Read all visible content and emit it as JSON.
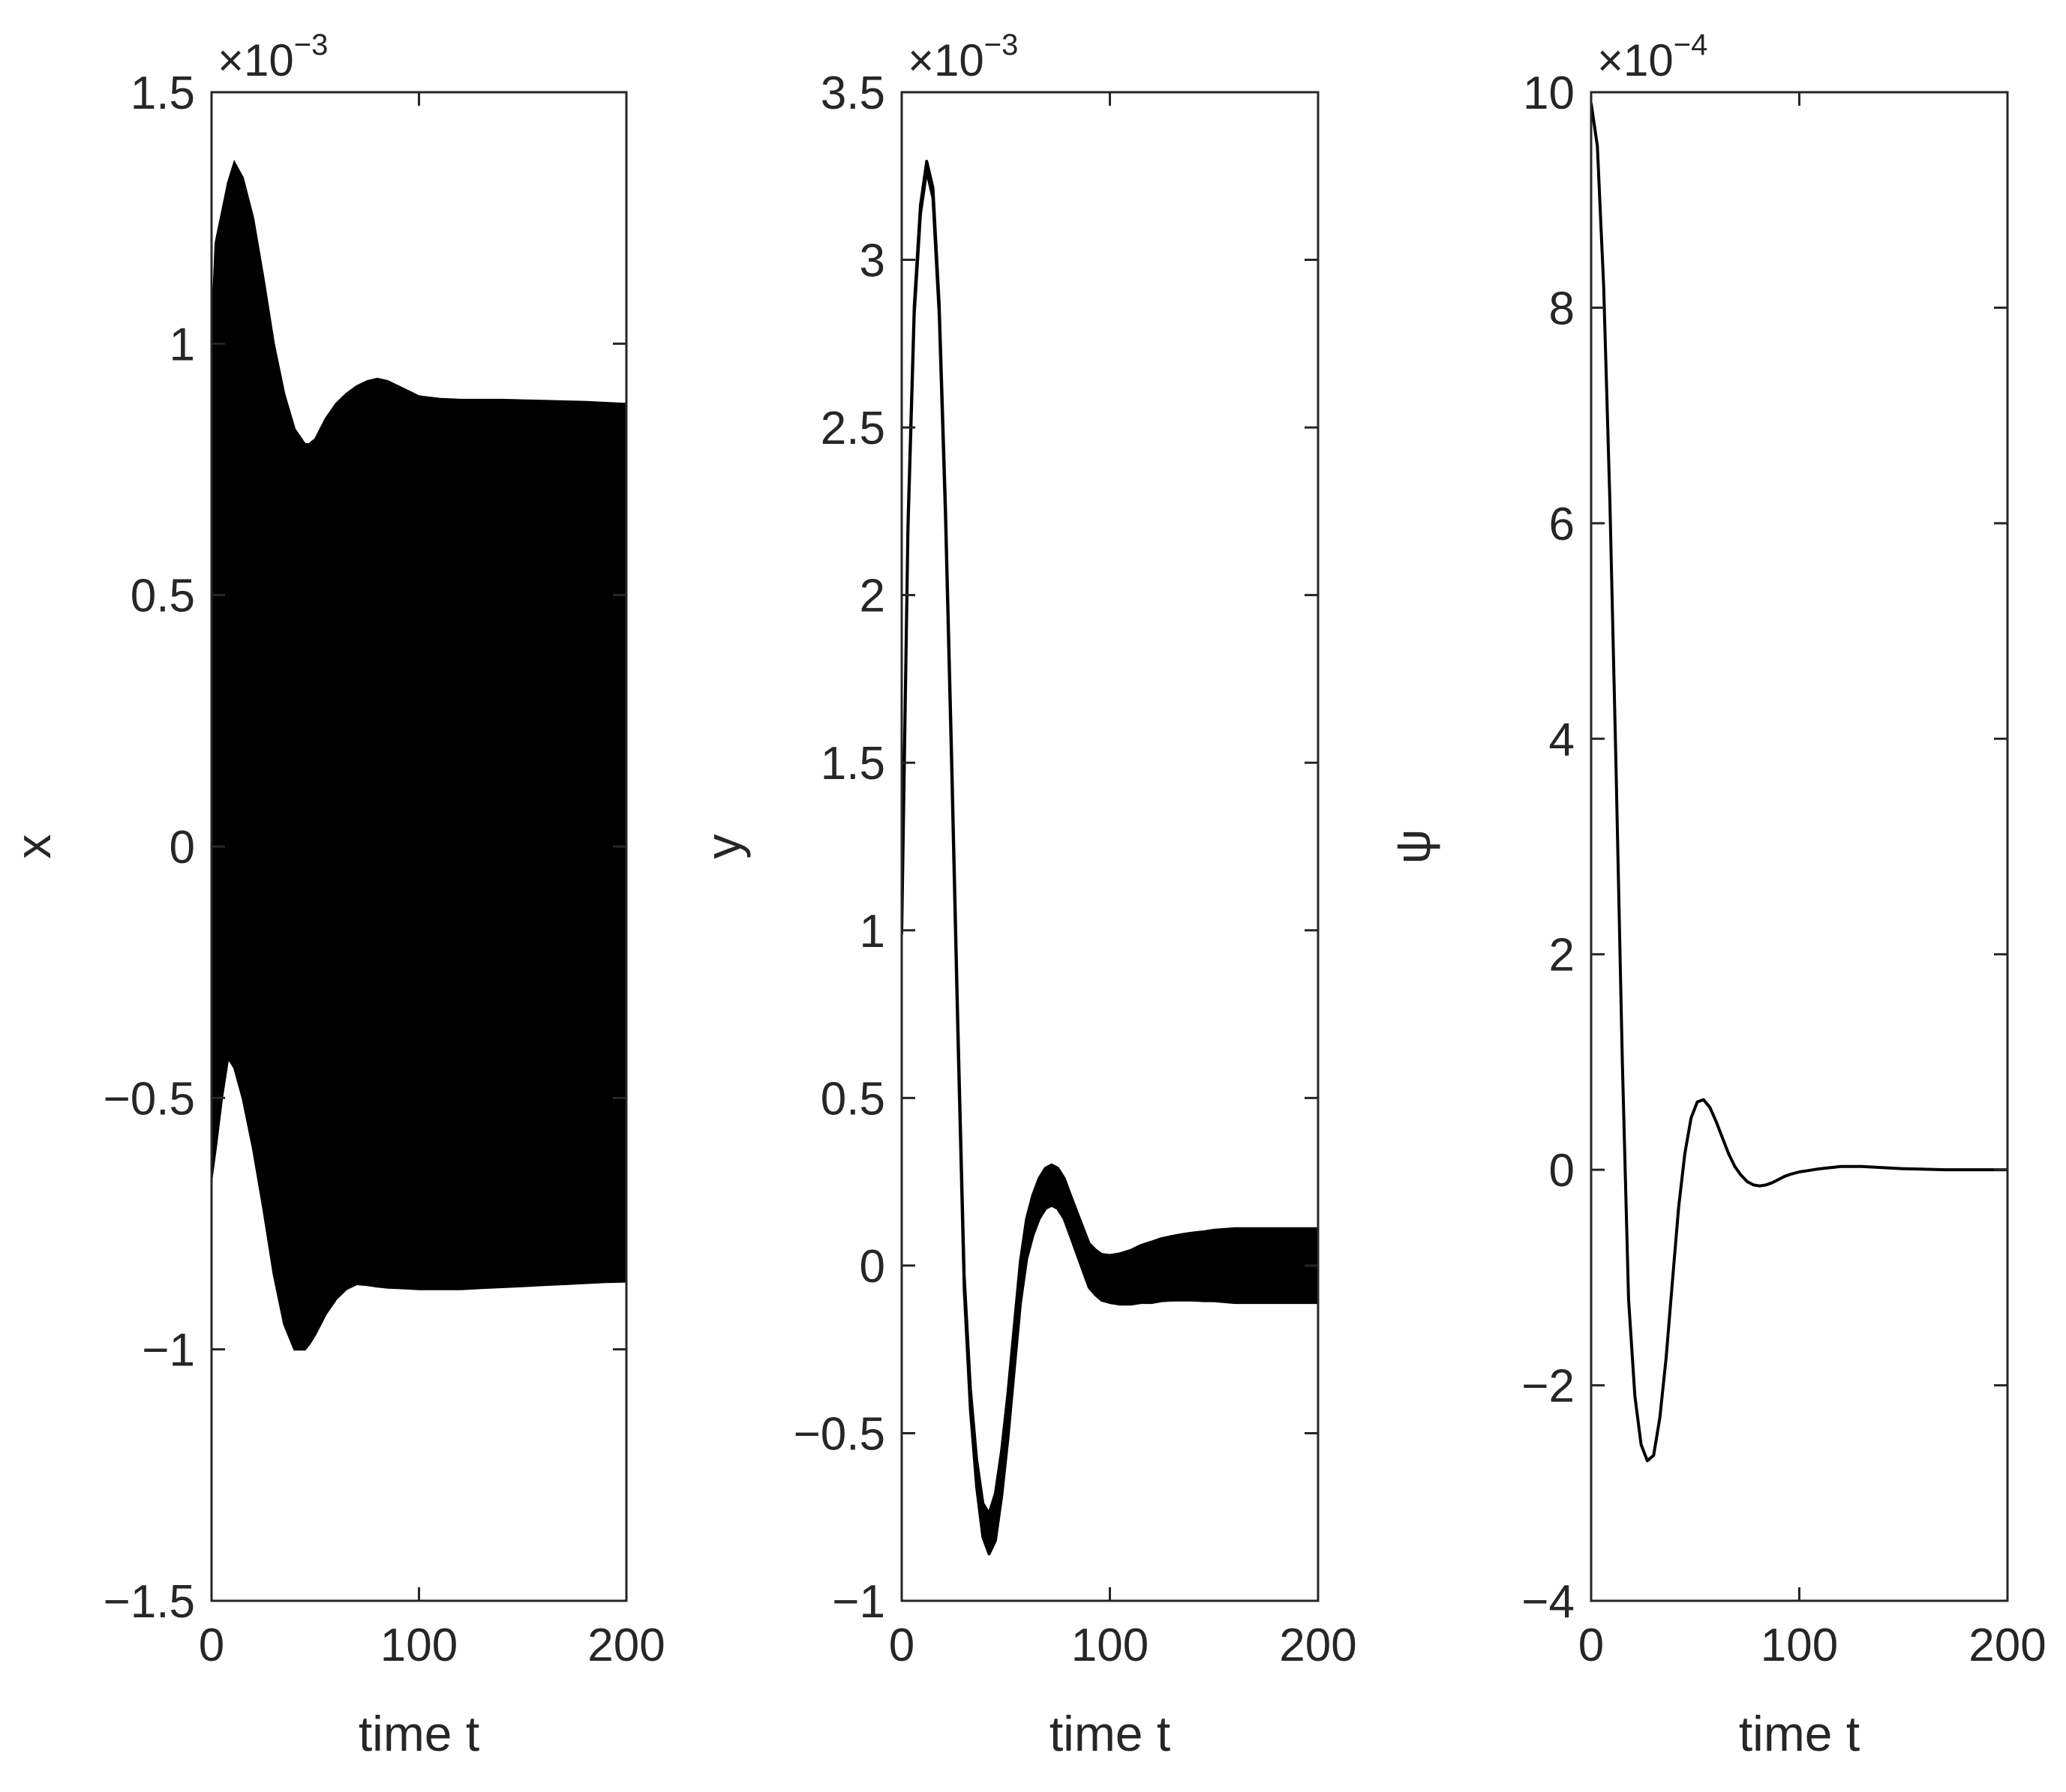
{
  "chart_data": [
    {
      "type": "line",
      "title": "",
      "xlabel": "time t",
      "ylabel": "x",
      "xlim": [
        0,
        200
      ],
      "ylim": [
        -1.5,
        1.5
      ],
      "y_scale_factor": "×10^-3",
      "y_scale_base": "×10",
      "y_scale_exponent": "-3",
      "xticks": [
        "0",
        "100",
        "200"
      ],
      "yticks": [
        "-1.5",
        "-1",
        "-0.5",
        "0",
        "0.5",
        "1",
        "1.5"
      ],
      "grid": false,
      "series": [
        {
          "style": "dense oscillation band (filled envelope)",
          "upper_envelope": {
            "x": [
              0,
              2,
              5,
              8,
              11,
              15,
              20,
              25,
              30,
              35,
              40,
              45,
              47,
              50,
              55,
              60,
              65,
              70,
              75,
              80,
              85,
              90,
              95,
              100,
              110,
              120,
              130,
              140,
              150,
              160,
              170,
              180,
              190,
              200
            ],
            "y": [
              1.0,
              1.2,
              1.26,
              1.32,
              1.36,
              1.33,
              1.25,
              1.13,
              1.0,
              0.9,
              0.83,
              0.8,
              0.8,
              0.81,
              0.85,
              0.88,
              0.9,
              0.915,
              0.925,
              0.93,
              0.925,
              0.915,
              0.905,
              0.895,
              0.89,
              0.888,
              0.888,
              0.888,
              0.887,
              0.886,
              0.885,
              0.884,
              0.882,
              0.88
            ]
          },
          "lower_envelope": {
            "x": [
              0,
              2,
              5,
              8,
              11,
              15,
              20,
              25,
              30,
              35,
              40,
              45,
              47,
              50,
              55,
              60,
              65,
              70,
              75,
              80,
              85,
              90,
              95,
              100,
              110,
              120,
              130,
              140,
              150,
              160,
              170,
              180,
              190,
              200
            ],
            "y": [
              -0.66,
              -0.6,
              -0.5,
              -0.42,
              -0.44,
              -0.5,
              -0.6,
              -0.72,
              -0.85,
              -0.95,
              -1.0,
              -1.0,
              -0.99,
              -0.97,
              -0.93,
              -0.9,
              -0.88,
              -0.87,
              -0.872,
              -0.875,
              -0.877,
              -0.878,
              -0.879,
              -0.88,
              -0.88,
              -0.88,
              -0.878,
              -0.876,
              -0.874,
              -0.872,
              -0.87,
              -0.868,
              -0.866,
              -0.865
            ]
          }
        }
      ]
    },
    {
      "type": "line",
      "title": "",
      "xlabel": "time t",
      "ylabel": "y",
      "xlim": [
        0,
        200
      ],
      "ylim": [
        -1,
        3.5
      ],
      "y_scale_factor": "×10^-3",
      "y_scale_base": "×10",
      "y_scale_exponent": "-3",
      "xticks": [
        "0",
        "100",
        "200"
      ],
      "yticks": [
        "-1",
        "-0.5",
        "0",
        "0.5",
        "1",
        "1.5",
        "2",
        "2.5",
        "3",
        "3.5"
      ],
      "grid": false,
      "series": [
        {
          "style": "line with growing oscillation band",
          "center": {
            "x": [
              0,
              3,
              6,
              9,
              12,
              15,
              18,
              21,
              24,
              27,
              30,
              33,
              36,
              39,
              42,
              45,
              48,
              51,
              54,
              57,
              60,
              63,
              66,
              69,
              72,
              75,
              78,
              81,
              84,
              87,
              90,
              93,
              96,
              100,
              105,
              110,
              115,
              120,
              125,
              130,
              135,
              140,
              145,
              150,
              160,
              170,
              180,
              190,
              200
            ],
            "y": [
              1.0,
              2.2,
              2.85,
              3.15,
              3.28,
              3.2,
              2.85,
              2.25,
              1.5,
              0.7,
              -0.05,
              -0.4,
              -0.62,
              -0.76,
              -0.8,
              -0.75,
              -0.62,
              -0.45,
              -0.25,
              -0.05,
              0.08,
              0.15,
              0.2,
              0.23,
              0.24,
              0.23,
              0.2,
              0.15,
              0.1,
              0.05,
              0.0,
              -0.02,
              -0.035,
              -0.04,
              -0.04,
              -0.035,
              -0.025,
              -0.02,
              -0.012,
              -0.008,
              -0.005,
              -0.003,
              -0.002,
              0.0,
              0.0,
              0.0,
              0.0,
              0.0,
              0.0
            ]
          },
          "band_halfwidth": {
            "x": [
              0,
              30,
              45,
              60,
              80,
              100,
              120,
              140,
              160,
              200
            ],
            "y": [
              0.01,
              0.02,
              0.07,
              0.06,
              0.06,
              0.07,
              0.09,
              0.1,
              0.11,
              0.11
            ]
          }
        }
      ]
    },
    {
      "type": "line",
      "title": "",
      "xlabel": "time t",
      "ylabel": "ψ",
      "xlim": [
        0,
        200
      ],
      "ylim": [
        -4,
        10
      ],
      "y_scale_factor": "×10^-4",
      "y_scale_base": "×10",
      "y_scale_exponent": "-4",
      "xticks": [
        "0",
        "100",
        "200"
      ],
      "yticks": [
        "-4",
        "-2",
        "0",
        "2",
        "4",
        "6",
        "8",
        "10"
      ],
      "grid": false,
      "series": [
        {
          "style": "single smooth line",
          "x": [
            0,
            3,
            6,
            9,
            12,
            15,
            18,
            21,
            24,
            27,
            30,
            33,
            36,
            39,
            42,
            45,
            48,
            51,
            54,
            57,
            60,
            63,
            66,
            69,
            72,
            75,
            78,
            81,
            84,
            87,
            90,
            93,
            96,
            100,
            110,
            120,
            130,
            140,
            150,
            160,
            170,
            180,
            190,
            200
          ],
          "y": [
            9.9,
            9.5,
            8.2,
            6.2,
            3.7,
            1.0,
            -1.2,
            -2.1,
            -2.55,
            -2.7,
            -2.65,
            -2.3,
            -1.75,
            -1.05,
            -0.35,
            0.15,
            0.48,
            0.63,
            0.65,
            0.58,
            0.45,
            0.3,
            0.15,
            0.03,
            -0.05,
            -0.11,
            -0.14,
            -0.15,
            -0.14,
            -0.12,
            -0.09,
            -0.06,
            -0.04,
            -0.02,
            0.01,
            0.03,
            0.03,
            0.02,
            0.01,
            0.005,
            0.0,
            0.0,
            0.0,
            0.0
          ]
        }
      ]
    }
  ]
}
